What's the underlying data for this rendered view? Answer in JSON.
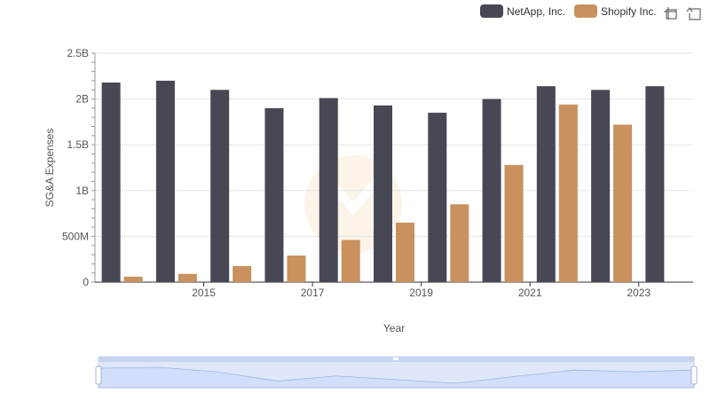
{
  "chart_data": {
    "type": "bar",
    "x_axis_label": "Year",
    "y_axis_label": "SG&A Expenses",
    "x_tick_labels": [
      "2015",
      "2017",
      "2019",
      "2021",
      "2023"
    ],
    "y_tick_labels": [
      "0",
      "500M",
      "1B",
      "1.5B",
      "2B",
      "2.5B"
    ],
    "y_ticks": [
      0,
      500000000,
      1000000000,
      1500000000,
      2000000000,
      2500000000
    ],
    "ylim": [
      0,
      2500000000
    ],
    "categories": [
      2014,
      2015,
      2016,
      2017,
      2018,
      2019,
      2020,
      2021,
      2022,
      2023,
      2024
    ],
    "grid": true,
    "legend_position": "top-right",
    "series": [
      {
        "name": "NetApp, Inc.",
        "color": "#484855",
        "values": [
          2180000000,
          2200000000,
          2100000000,
          1900000000,
          2010000000,
          1930000000,
          1850000000,
          2000000000,
          2140000000,
          2100000000,
          2140000000
        ]
      },
      {
        "name": "Shopify Inc.",
        "color": "#C8915E",
        "values": [
          60000000,
          90000000,
          175000000,
          290000000,
          460000000,
          650000000,
          850000000,
          1280000000,
          1940000000,
          1720000000,
          null
        ]
      }
    ]
  },
  "toolbar": {
    "zoom_icon": "crosshair-zoom-icon",
    "reset_icon": "restore-icon"
  }
}
